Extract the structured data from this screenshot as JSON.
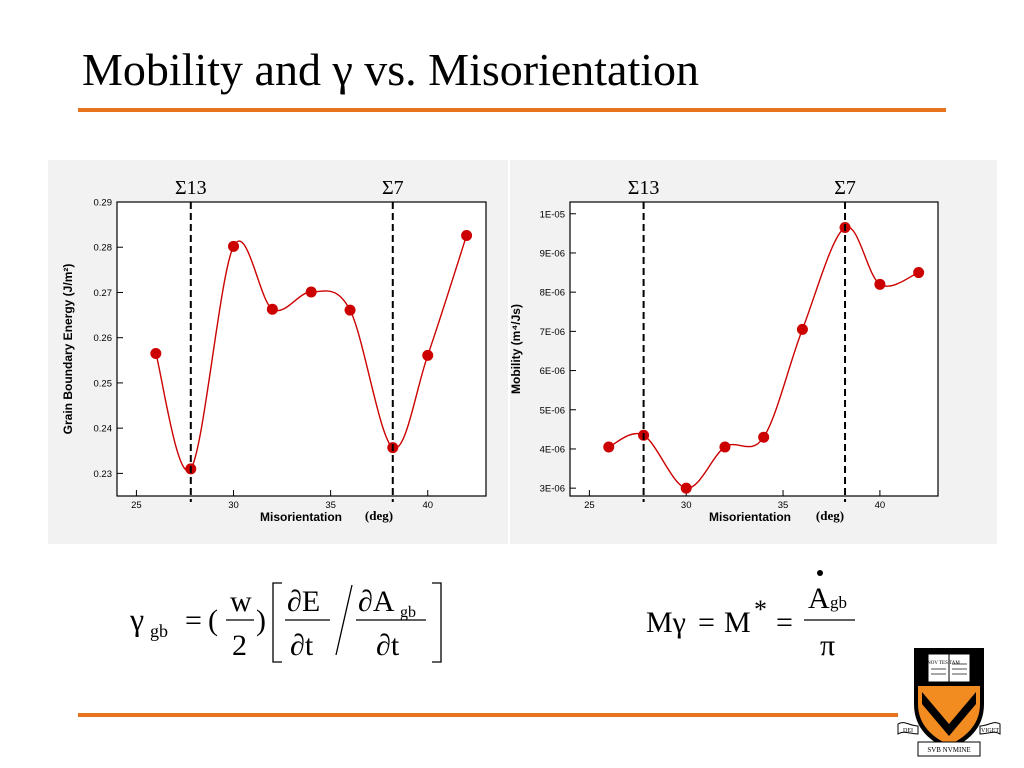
{
  "page": {
    "title": "Mobility and γ vs. Misorientation"
  },
  "colors": {
    "accent": "#e8731f",
    "series": "#cc0000",
    "plot_bg": "#f2f2f2",
    "logo_orange": "#f28b20"
  },
  "chart_data": [
    {
      "type": "line",
      "xlabel": "Misorientation",
      "xunit": "(deg)",
      "ylabel": "Grain Boundary Energy  (J/m²)",
      "xlim": [
        24,
        43
      ],
      "ylim": [
        0.225,
        0.29
      ],
      "xticks": [
        "25",
        "30",
        "35",
        "40"
      ],
      "xtick_values": [
        25,
        30,
        35,
        40
      ],
      "yticks": [
        "0.23",
        "0.24",
        "0.25",
        "0.26",
        "0.27",
        "0.28",
        "0.29"
      ],
      "ytick_values": [
        0.23,
        0.24,
        0.25,
        0.26,
        0.27,
        0.28,
        0.29
      ],
      "grid": false,
      "x": [
        26,
        27.8,
        30,
        32,
        34,
        36,
        38.2,
        40,
        42
      ],
      "y": [
        0.2565,
        0.231,
        0.2802,
        0.2663,
        0.2701,
        0.2661,
        0.2357,
        0.2561,
        0.2826
      ],
      "reference_lines": [
        {
          "x": 27.8,
          "label": "Σ13"
        },
        {
          "x": 38.2,
          "label": "Σ7"
        }
      ]
    },
    {
      "type": "line",
      "xlabel": "Misorientation",
      "xunit": "(deg)",
      "ylabel": "Mobility  (m⁴/Js)",
      "xlim": [
        24,
        43
      ],
      "ylim": [
        2.8e-06,
        1.03e-05
      ],
      "xticks": [
        "25",
        "30",
        "35",
        "40"
      ],
      "xtick_values": [
        25,
        30,
        35,
        40
      ],
      "yticks": [
        "3E-06",
        "4E-06",
        "5E-06",
        "6E-06",
        "7E-06",
        "8E-06",
        "9E-06",
        "1E-05"
      ],
      "ytick_values": [
        3e-06,
        4e-06,
        5e-06,
        6e-06,
        7e-06,
        8e-06,
        9e-06,
        1e-05
      ],
      "grid": false,
      "x": [
        26,
        27.8,
        30,
        32,
        34,
        36,
        38.2,
        40,
        42
      ],
      "y": [
        4.05e-06,
        4.35e-06,
        3e-06,
        4.05e-06,
        4.3e-06,
        7.05e-06,
        9.65e-06,
        8.2e-06,
        8.5e-06
      ],
      "reference_lines": [
        {
          "x": 27.8,
          "label": "Σ13"
        },
        {
          "x": 38.2,
          "label": "Σ7"
        }
      ]
    }
  ],
  "equations": {
    "eq1": {
      "lhs": "γ",
      "lhs_sub": "gb",
      "equals": "=",
      "open": "(",
      "w": "w",
      "two": "2",
      "close": ")",
      "dE": "∂E",
      "dt1": "∂t",
      "slash": "/",
      "dA": "∂A",
      "dA_sub": "gb",
      "dt2": "∂t"
    },
    "eq2": {
      "lhs": "Mγ",
      "eq1": "=",
      "mstar": "M",
      "star": "*",
      "eq2": "=",
      "numer": "A",
      "numer_sub": "gb",
      "denom": "π"
    }
  },
  "logo": {
    "ribbon_left": "DEI",
    "ribbon_middle": "SVB NVMINE",
    "ribbon_right": "VIGET",
    "book_text": "VET NOV TES TAM"
  }
}
